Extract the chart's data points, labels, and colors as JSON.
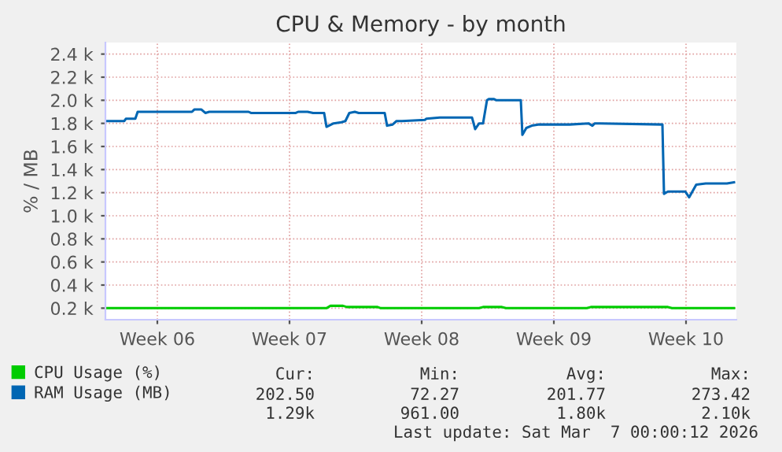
{
  "chart_data": {
    "type": "line",
    "title": "CPU & Memory - by month",
    "ylabel": "% / MB",
    "xlim": [
      "2026-02-02T18:00",
      "2026-03-08T04:00"
    ],
    "xticks": [
      {
        "value": "2026-02-05T12:00",
        "label": "Week 06"
      },
      {
        "value": "2026-02-12T12:00",
        "label": "Week 07"
      },
      {
        "value": "2026-02-19T12:00",
        "label": "Week 08"
      },
      {
        "value": "2026-02-26T12:00",
        "label": "Week 09"
      },
      {
        "value": "2026-03-05T12:00",
        "label": "Week 10"
      }
    ],
    "ylim": [
      0.1,
      2.5
    ],
    "yticks": [
      {
        "value": 0.2,
        "label": "0.2 k"
      },
      {
        "value": 0.4,
        "label": "0.4 k"
      },
      {
        "value": 0.6,
        "label": "0.6 k"
      },
      {
        "value": 0.8,
        "label": "0.8 k"
      },
      {
        "value": 1.0,
        "label": "1.0 k"
      },
      {
        "value": 1.2,
        "label": "1.2 k"
      },
      {
        "value": 1.4,
        "label": "1.4 k"
      },
      {
        "value": 1.6,
        "label": "1.6 k"
      },
      {
        "value": 1.8,
        "label": "1.8 k"
      },
      {
        "value": 2.0,
        "label": "2.0 k"
      },
      {
        "value": 2.2,
        "label": "2.2 k"
      },
      {
        "value": 2.4,
        "label": "2.4 k"
      }
    ],
    "grid": true,
    "legend": "bottom left",
    "line_style": "solid",
    "marker": "none",
    "series": [
      {
        "name": "CPU Usage (%)",
        "color": "#00cc00",
        "x": [
          "2026-02-02T18:00",
          "2026-02-14T11:00",
          "2026-02-14T16:00",
          "2026-02-15T08:00",
          "2026-02-15T13:00",
          "2026-02-17T04:00",
          "2026-02-17T08:00",
          "2026-02-22T13:00",
          "2026-02-22T18:00",
          "2026-02-23T18:00",
          "2026-02-23T23:00",
          "2026-02-28T06:00",
          "2026-02-28T11:00",
          "2026-03-04T13:00",
          "2026-03-04T18:00",
          "2026-03-08T01:00"
        ],
        "values": [
          0.2,
          0.2,
          0.22,
          0.22,
          0.21,
          0.21,
          0.2,
          0.2,
          0.21,
          0.21,
          0.2,
          0.2,
          0.21,
          0.21,
          0.2,
          0.2
        ]
      },
      {
        "name": "RAM Usage (MB)",
        "color": "#0066b3",
        "x": [
          "2026-02-02T18:00",
          "2026-02-03T18:00",
          "2026-02-03T20:00",
          "2026-02-04T08:00",
          "2026-02-04T11:00",
          "2026-02-07T08:00",
          "2026-02-07T11:00",
          "2026-02-07T20:00",
          "2026-02-08T01:00",
          "2026-02-08T06:00",
          "2026-02-10T08:00",
          "2026-02-10T11:00",
          "2026-02-12T20:00",
          "2026-02-12T23:00",
          "2026-02-13T11:00",
          "2026-02-13T18:00",
          "2026-02-14T08:00",
          "2026-02-14T11:00",
          "2026-02-14T20:00",
          "2026-02-15T06:00",
          "2026-02-15T11:00",
          "2026-02-15T16:00",
          "2026-02-15T23:00",
          "2026-02-16T04:00",
          "2026-02-17T13:00",
          "2026-02-17T16:00",
          "2026-02-17T23:00",
          "2026-02-18T04:00",
          "2026-02-18T11:00",
          "2026-02-19T16:00",
          "2026-02-19T18:00",
          "2026-02-20T11:00",
          "2026-02-22T04:00",
          "2026-02-22T08:00",
          "2026-02-22T13:00",
          "2026-02-22T18:00",
          "2026-02-22T23:00",
          "2026-02-23T01:00",
          "2026-02-23T08:00",
          "2026-02-23T11:00",
          "2026-02-24T18:00",
          "2026-02-24T20:00",
          "2026-02-25T01:00",
          "2026-02-25T08:00",
          "2026-02-25T16:00",
          "2026-02-27T08:00",
          "2026-02-28T08:00",
          "2026-02-28T13:00",
          "2026-02-28T16:00",
          "2026-02-28T23:00",
          "2026-03-04T06:00",
          "2026-03-04T08:00",
          "2026-03-04T13:00",
          "2026-03-05T11:00",
          "2026-03-05T16:00",
          "2026-03-06T01:00",
          "2026-03-06T13:00",
          "2026-03-07T16:00",
          "2026-03-08T01:00"
        ],
        "values": [
          1.82,
          1.82,
          1.84,
          1.84,
          1.9,
          1.9,
          1.92,
          1.92,
          1.89,
          1.9,
          1.9,
          1.89,
          1.89,
          1.9,
          1.9,
          1.89,
          1.89,
          1.77,
          1.8,
          1.81,
          1.82,
          1.89,
          1.9,
          1.89,
          1.89,
          1.78,
          1.79,
          1.82,
          1.82,
          1.83,
          1.84,
          1.85,
          1.85,
          1.75,
          1.8,
          1.8,
          2.0,
          2.01,
          2.01,
          2.0,
          2.0,
          1.7,
          1.76,
          1.78,
          1.79,
          1.79,
          1.8,
          1.78,
          1.8,
          1.8,
          1.79,
          1.19,
          1.21,
          1.21,
          1.16,
          1.27,
          1.28,
          1.28,
          1.29
        ]
      }
    ],
    "annotations": [
      "Cur:",
      "Min:",
      "Avg:",
      "Max:",
      "202.50",
      "72.27",
      "201.77",
      "273.42",
      "1.29k",
      "961.00",
      "1.80k",
      "2.10k",
      "Last update: Sat Mar  7 00:00:12 2026"
    ]
  }
}
